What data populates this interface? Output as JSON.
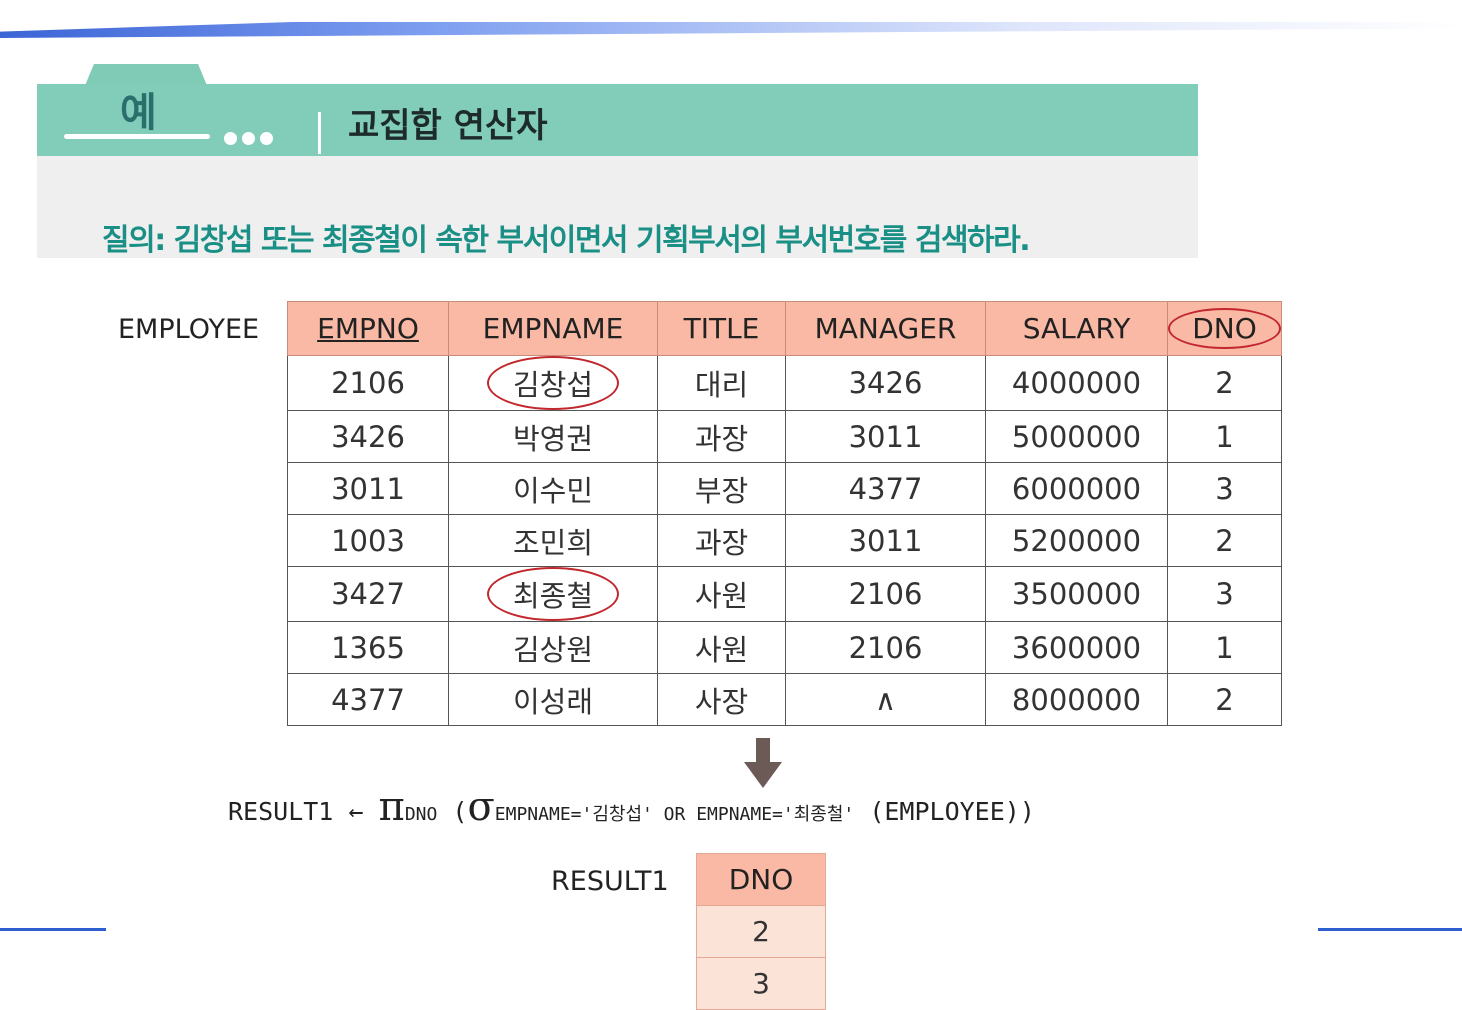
{
  "header": {
    "example_label": "예",
    "title": "교집합 연산자"
  },
  "query": "질의: 김창섭 또는 최종철이 속한 부서이면서 기획부서의 부서번호를 검색하라.",
  "employee_table": {
    "label": "EMPLOYEE",
    "columns": [
      "EMPNO",
      "EMPNAME",
      "TITLE",
      "MANAGER",
      "SALARY",
      "DNO"
    ],
    "rows": [
      [
        "2106",
        "김창섭",
        "대리",
        "3426",
        "4000000",
        "2"
      ],
      [
        "3426",
        "박영권",
        "과장",
        "3011",
        "5000000",
        "1"
      ],
      [
        "3011",
        "이수민",
        "부장",
        "4377",
        "6000000",
        "3"
      ],
      [
        "1003",
        "조민희",
        "과장",
        "3011",
        "5200000",
        "2"
      ],
      [
        "3427",
        "최종철",
        "사원",
        "2106",
        "3500000",
        "3"
      ],
      [
        "1365",
        "김상원",
        "사원",
        "2106",
        "3600000",
        "1"
      ],
      [
        "4377",
        "이성래",
        "사장",
        "∧",
        "8000000",
        "2"
      ]
    ]
  },
  "formula": {
    "result": "RESULT1",
    "arrow": "←",
    "pi": "π",
    "pi_sub": "DNO",
    "open": "(",
    "sigma": "σ",
    "sigma_sub": "EMPNAME='김창섭' OR EMPNAME='최종철'",
    "tail": "(EMPLOYEE))"
  },
  "result_table": {
    "label": "RESULT1",
    "column": "DNO",
    "values": [
      "2",
      "3"
    ]
  },
  "colors": {
    "header_band": "#82cdb9",
    "query_text": "#1a8f86",
    "table_header": "#f9b9a4",
    "highlight": "#c1272d"
  }
}
